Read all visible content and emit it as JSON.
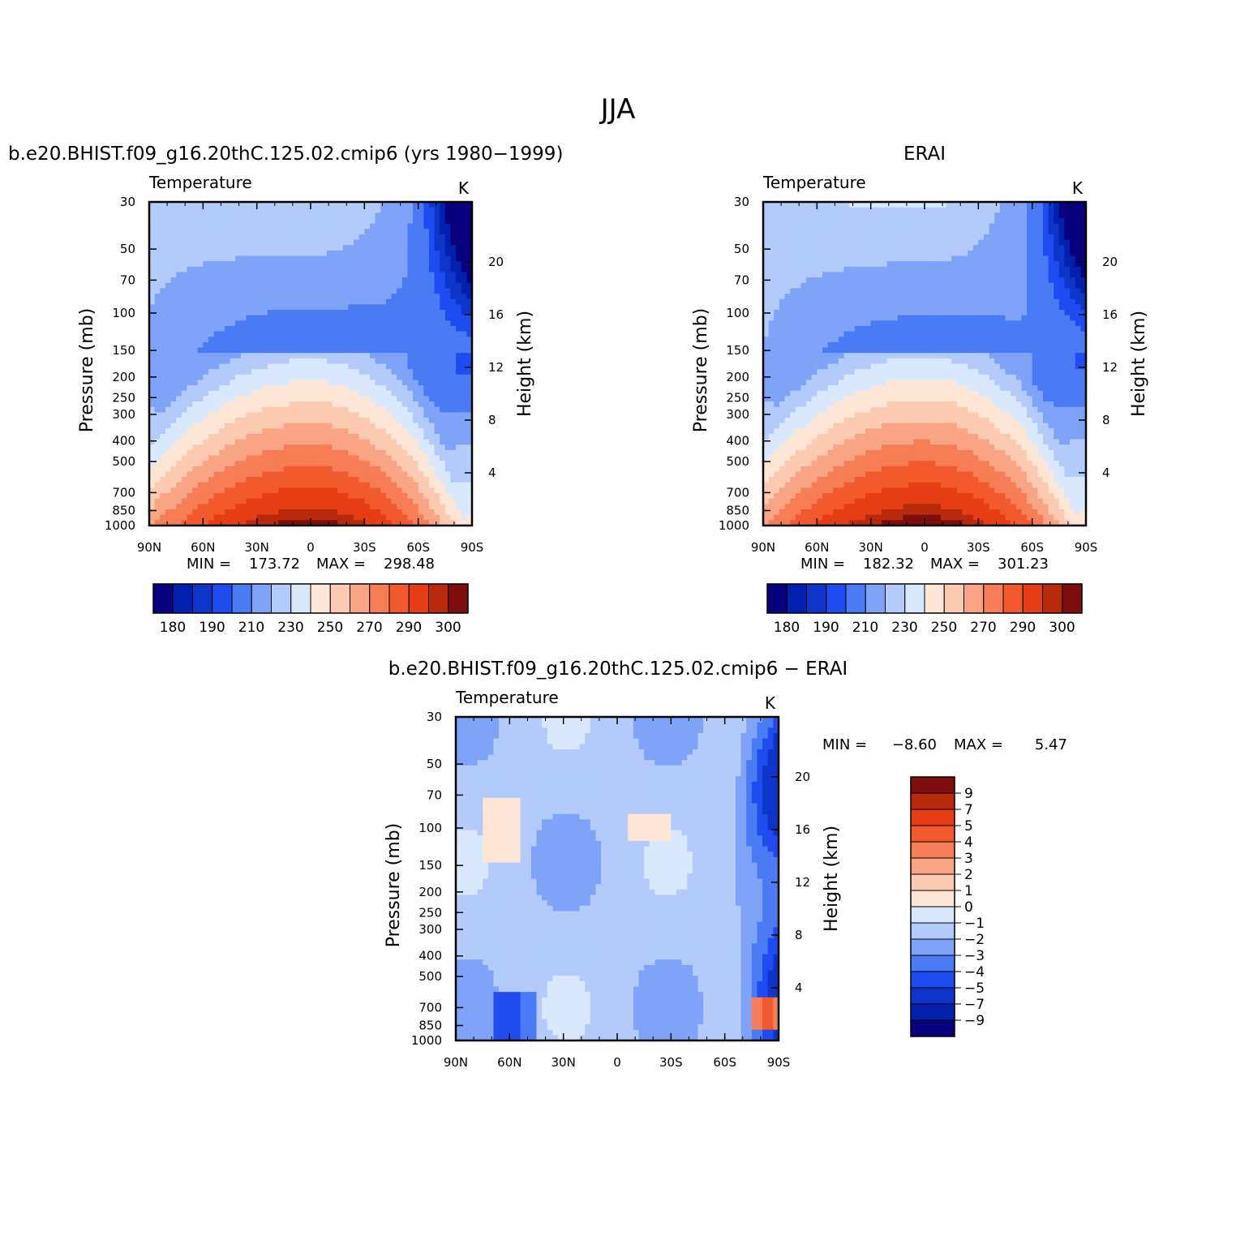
{
  "figure": {
    "title": "JJA"
  },
  "colorbar_levels": {
    "absolute": [
      "180",
      "190",
      "210",
      "230",
      "250",
      "270",
      "290",
      "300"
    ],
    "difference": [
      "9",
      "7",
      "5",
      "4",
      "3",
      "2",
      "1",
      "0",
      "−1",
      "−2",
      "−3",
      "−4",
      "−5",
      "−7",
      "−9"
    ]
  },
  "colors": {
    "absolute_palette": [
      "#08007f",
      "#0020ad",
      "#0d35c9",
      "#1f4cf0",
      "#4a7bf5",
      "#7ea3f8",
      "#b3cbfa",
      "#d9e8fc",
      "#fde6d6",
      "#fccab1",
      "#f9a585",
      "#f67d55",
      "#f25a2e",
      "#e63d14",
      "#b82a0b",
      "#7f0d0d"
    ],
    "difference_palette": [
      "#7f0d0d",
      "#b82a0b",
      "#e63d14",
      "#f25a2e",
      "#f67d55",
      "#f9a585",
      "#fccab1",
      "#fde6d6",
      "#d9e8fc",
      "#b3cbfa",
      "#7ea3f8",
      "#4a7bf5",
      "#1f4cf0",
      "#0d35c9",
      "#0020ad",
      "#08007f"
    ]
  },
  "chart_data": [
    {
      "type": "heatmap",
      "title": "b.e20.BHIST.f09_g16.20thC.125.02.cmip6 (yrs 1980−1999)",
      "subtitle_left": "Temperature",
      "subtitle_right": "K",
      "ylabel": "Pressure (mb)",
      "ylabel_right": "Height (km)",
      "xticks": [
        "90N",
        "60N",
        "30N",
        "0",
        "30S",
        "60S",
        "90S"
      ],
      "yticks": [
        "30",
        "50",
        "70",
        "100",
        "150",
        "200",
        "250",
        "300",
        "400",
        "500",
        "700",
        "850",
        "1000"
      ],
      "yticks_right": [
        "20",
        "16",
        "12",
        "8",
        "4"
      ],
      "stats_min_label": "MIN =",
      "min": "173.72",
      "stats_max_label": "MAX =",
      "max": "298.48",
      "units": "K",
      "y_scale": "log-pressure",
      "ylim": [
        1000,
        30
      ]
    },
    {
      "type": "heatmap",
      "title": "ERAI",
      "subtitle_left": "Temperature",
      "subtitle_right": "K",
      "ylabel": "Pressure (mb)",
      "ylabel_right": "Height (km)",
      "xticks": [
        "90N",
        "60N",
        "30N",
        "0",
        "30S",
        "60S",
        "90S"
      ],
      "yticks": [
        "30",
        "50",
        "70",
        "100",
        "150",
        "200",
        "250",
        "300",
        "400",
        "500",
        "700",
        "850",
        "1000"
      ],
      "yticks_right": [
        "20",
        "16",
        "12",
        "8",
        "4"
      ],
      "stats_min_label": "MIN =",
      "min": "182.32",
      "stats_max_label": "MAX =",
      "max": "301.23",
      "units": "K",
      "y_scale": "log-pressure",
      "ylim": [
        1000,
        30
      ]
    },
    {
      "type": "heatmap",
      "title": "b.e20.BHIST.f09_g16.20thC.125.02.cmip6 − ERAI",
      "subtitle_left": "Temperature",
      "subtitle_right": "K",
      "ylabel": "Pressure (mb)",
      "ylabel_right": "Height (km)",
      "xticks": [
        "90N",
        "60N",
        "30N",
        "0",
        "30S",
        "60S",
        "90S"
      ],
      "yticks": [
        "30",
        "50",
        "70",
        "100",
        "150",
        "200",
        "250",
        "300",
        "400",
        "500",
        "700",
        "850",
        "1000"
      ],
      "yticks_right": [
        "20",
        "16",
        "12",
        "8",
        "4"
      ],
      "stats_min_label": "MIN =",
      "min": "−8.60",
      "stats_max_label": "MAX =",
      "max": "5.47",
      "units": "K",
      "y_scale": "log-pressure",
      "ylim": [
        1000,
        30
      ]
    }
  ]
}
